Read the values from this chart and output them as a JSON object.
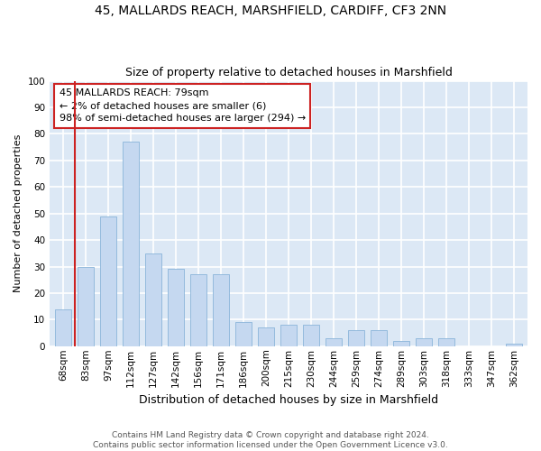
{
  "title": "45, MALLARDS REACH, MARSHFIELD, CARDIFF, CF3 2NN",
  "subtitle": "Size of property relative to detached houses in Marshfield",
  "xlabel": "Distribution of detached houses by size in Marshfield",
  "ylabel": "Number of detached properties",
  "categories": [
    "68sqm",
    "83sqm",
    "97sqm",
    "112sqm",
    "127sqm",
    "142sqm",
    "156sqm",
    "171sqm",
    "186sqm",
    "200sqm",
    "215sqm",
    "230sqm",
    "244sqm",
    "259sqm",
    "274sqm",
    "289sqm",
    "303sqm",
    "318sqm",
    "333sqm",
    "347sqm",
    "362sqm"
  ],
  "values": [
    14,
    30,
    49,
    77,
    35,
    29,
    27,
    27,
    9,
    7,
    8,
    8,
    3,
    6,
    6,
    2,
    3,
    3,
    0,
    0,
    1
  ],
  "bar_color": "#c5d8f0",
  "bar_edge_color": "#8ab4d9",
  "highlight_color": "#cc2222",
  "annotation_text": "45 MALLARDS REACH: 79sqm\n← 2% of detached houses are smaller (6)\n98% of semi-detached houses are larger (294) →",
  "annotation_box_color": "white",
  "annotation_box_edge_color": "#cc2222",
  "ylim": [
    0,
    100
  ],
  "yticks": [
    0,
    10,
    20,
    30,
    40,
    50,
    60,
    70,
    80,
    90,
    100
  ],
  "background_color": "#dce8f5",
  "grid_color": "white",
  "footer_line1": "Contains HM Land Registry data © Crown copyright and database right 2024.",
  "footer_line2": "Contains public sector information licensed under the Open Government Licence v3.0.",
  "title_fontsize": 10,
  "subtitle_fontsize": 9,
  "xlabel_fontsize": 9,
  "ylabel_fontsize": 8,
  "tick_fontsize": 7.5,
  "annotation_fontsize": 8,
  "footer_fontsize": 6.5
}
